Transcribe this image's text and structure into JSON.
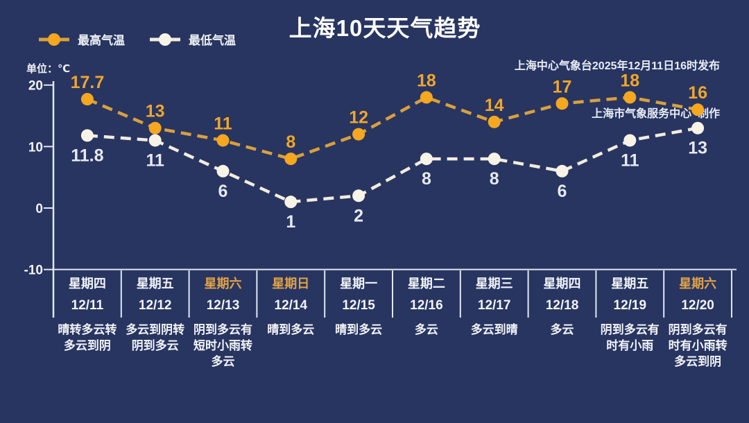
{
  "header": {
    "title": "上海10天天气趋势",
    "source_line1": "上海中心气象台2025年12月11日16时发布",
    "source_line2": "上海市气象服务中心  制作",
    "unit_label": "单位：℃"
  },
  "legend": {
    "high_label": "最高气温",
    "low_label": "最低气温"
  },
  "colors": {
    "background": "#283561",
    "text_primary": "#F2F4F8",
    "axis": "#E2E7F1",
    "weekend_accent": "#E2A348",
    "high_accent": "#F2A71F",
    "low_accent": "#F7F1E3"
  },
  "chart_data": {
    "type": "line",
    "title": "上海10天天气趋势",
    "unit": "℃",
    "y_ticks": [
      20,
      10,
      0,
      -10
    ],
    "ylim": [
      -10,
      22
    ],
    "grid": false,
    "legend_position": "top-left",
    "categories": [
      {
        "weekday": "星期四",
        "date": "12/11",
        "weather": "晴转多云转多云到阴",
        "is_weekend": false
      },
      {
        "weekday": "星期五",
        "date": "12/12",
        "weather": "多云到阴转阴到多云",
        "is_weekend": false
      },
      {
        "weekday": "星期六",
        "date": "12/13",
        "weather": "阴到多云有短时小雨转多云",
        "is_weekend": true
      },
      {
        "weekday": "星期日",
        "date": "12/14",
        "weather": "晴到多云",
        "is_weendend": false,
        "is_weekend": true
      },
      {
        "weekday": "星期一",
        "date": "12/15",
        "weather": "晴到多云",
        "is_weekend": false
      },
      {
        "weekday": "星期二",
        "date": "12/16",
        "weather": "多云",
        "is_weekend": false
      },
      {
        "weekday": "星期三",
        "date": "12/17",
        "weather": "多云到晴",
        "is_weekend": false
      },
      {
        "weekday": "星期四",
        "date": "12/18",
        "weather": "多云",
        "is_weekend": false
      },
      {
        "weekday": "星期五",
        "date": "12/19",
        "weather": "阴到多云有时有小雨",
        "is_weekend": false
      },
      {
        "weekday": "星期六",
        "date": "12/20",
        "weather": "阴到多云有时有小雨转多云到阴",
        "is_weekend": true
      }
    ],
    "series": [
      {
        "name": "最高气温",
        "values": [
          17.7,
          13,
          11,
          8,
          12,
          18,
          14,
          17,
          18,
          16
        ],
        "line_color": "#D9A03C",
        "dot_color": "#F4A71F",
        "label_color": "#EFA62C",
        "label_side": "above"
      },
      {
        "name": "最低气温",
        "values": [
          11.8,
          11,
          6,
          1,
          2,
          8,
          8,
          6,
          11,
          13
        ],
        "line_color": "#F2ECDD",
        "dot_color": "#F8F3E7",
        "label_color": "#E6E9F2",
        "label_side": "below"
      }
    ]
  }
}
